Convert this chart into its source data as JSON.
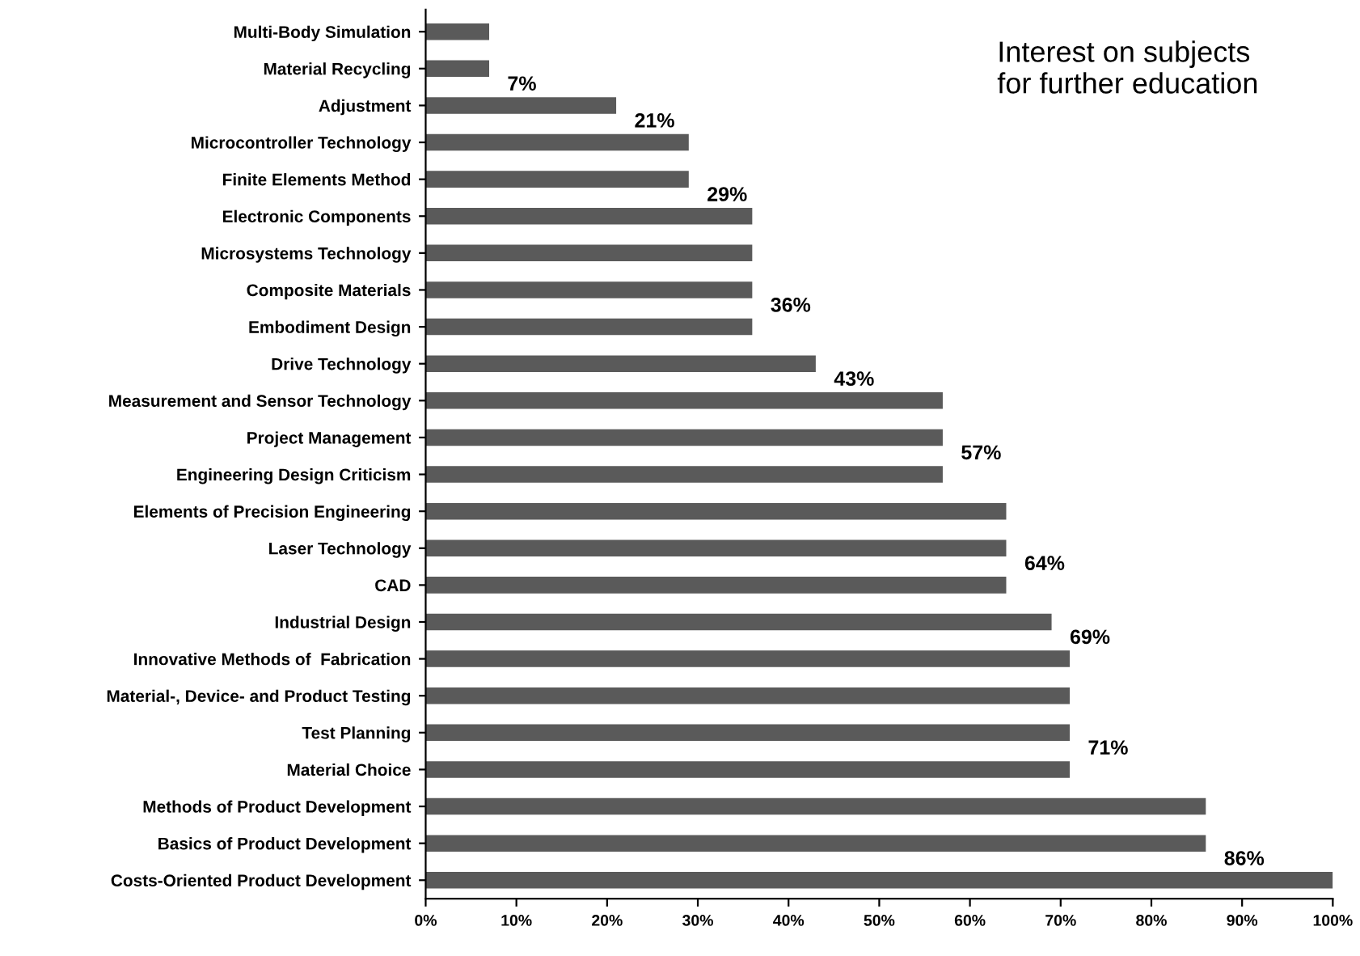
{
  "chart_data": {
    "type": "bar",
    "orientation": "horizontal",
    "title": "Interest on subjects\nfor further education",
    "categories": [
      "Multi-Body Simulation",
      "Material Recycling",
      "Adjustment",
      "Microcontroller Technology",
      "Finite Elements Method",
      "Electronic Components",
      "Microsystems Technology",
      "Composite Materials",
      "Embodiment Design",
      "Drive Technology",
      "Measurement and Sensor Technology",
      "Project Management",
      "Engineering Design Criticism",
      "Elements of Precision Engineering",
      "Laser Technology",
      "CAD",
      "Industrial Design",
      "Innovative Methods of  Fabrication",
      "Material-, Device- and Product Testing",
      "Test Planning",
      "Material Choice",
      "Methods of Product Development",
      "Basics of Product Development",
      "Costs-Oriented Product Development"
    ],
    "values": [
      7,
      7,
      21,
      29,
      29,
      36,
      36,
      36,
      36,
      43,
      57,
      57,
      57,
      64,
      64,
      64,
      69,
      71,
      71,
      71,
      71,
      86,
      86,
      100
    ],
    "value_labels": [
      null,
      "7%",
      "21%",
      null,
      "29%",
      null,
      null,
      "36%",
      null,
      "43%",
      null,
      "57%",
      null,
      null,
      "64%",
      null,
      "69%",
      null,
      null,
      "71%",
      null,
      null,
      "86%",
      null
    ],
    "color": "#5a5a5a",
    "xlim": [
      0,
      100
    ],
    "xticks": [
      {
        "value": 0,
        "label": "0%"
      },
      {
        "value": 10,
        "label": "10%"
      },
      {
        "value": 20,
        "label": "20%"
      },
      {
        "value": 30,
        "label": "30%"
      },
      {
        "value": 40,
        "label": "40%"
      },
      {
        "value": 50,
        "label": "50%"
      },
      {
        "value": 60,
        "label": "60%"
      },
      {
        "value": 70,
        "label": "70%"
      },
      {
        "value": 80,
        "label": "80%"
      },
      {
        "value": 90,
        "label": "90%"
      },
      {
        "value": 100,
        "label": "100%"
      }
    ],
    "grid": false,
    "legend": false
  }
}
